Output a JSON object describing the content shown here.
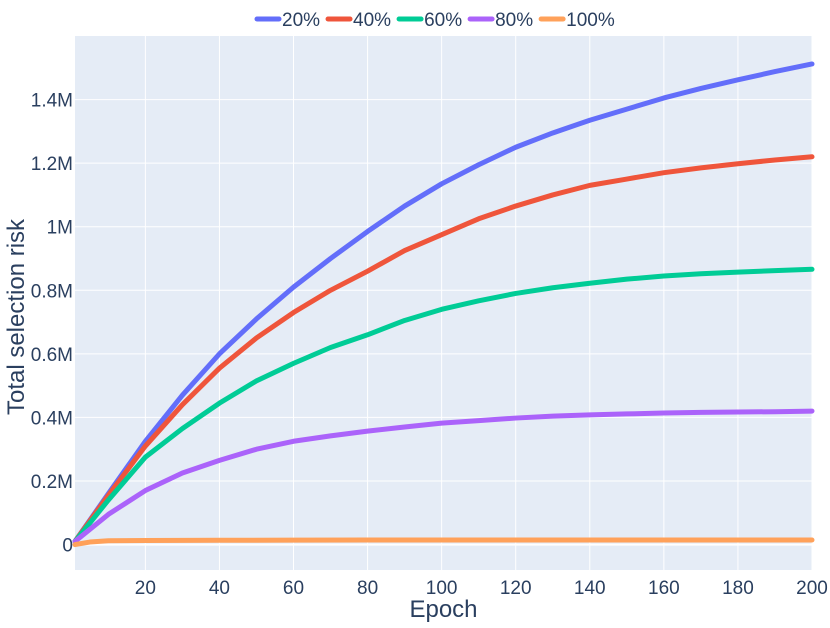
{
  "chart_data": {
    "type": "line",
    "title": "",
    "xlabel": "Epoch",
    "ylabel": "Total selection risk",
    "xlim": [
      1,
      200
    ],
    "ylim": [
      -80000,
      1600000
    ],
    "x_ticks": [
      20,
      40,
      60,
      80,
      100,
      120,
      140,
      160,
      180,
      200
    ],
    "x_tick_labels": [
      "20",
      "40",
      "60",
      "80",
      "100",
      "120",
      "140",
      "160",
      "180",
      "200"
    ],
    "y_ticks": [
      0,
      200000,
      400000,
      600000,
      800000,
      1000000,
      1200000,
      1400000
    ],
    "y_tick_labels": [
      "0",
      "0.2M",
      "0.4M",
      "0.6M",
      "0.8M",
      "1M",
      "1.2M",
      "1.4M"
    ],
    "grid": true,
    "legend_position": "top-center-horizontal",
    "background_color": "#e5ecf6",
    "grid_color": "#ffffff",
    "text_color": "#2a3f5f",
    "series": [
      {
        "name": "20%",
        "color": "#636efa",
        "x": [
          1,
          10,
          20,
          30,
          40,
          50,
          60,
          70,
          80,
          90,
          100,
          110,
          120,
          130,
          140,
          150,
          160,
          170,
          180,
          190,
          200
        ],
        "y": [
          10000,
          160000,
          325000,
          470000,
          600000,
          710000,
          810000,
          900000,
          985000,
          1065000,
          1135000,
          1195000,
          1250000,
          1295000,
          1335000,
          1370000,
          1405000,
          1435000,
          1462000,
          1488000,
          1512000
        ]
      },
      {
        "name": "40%",
        "color": "#ef553b",
        "x": [
          1,
          10,
          20,
          30,
          40,
          50,
          60,
          70,
          80,
          90,
          100,
          110,
          120,
          130,
          140,
          150,
          160,
          170,
          180,
          190,
          200
        ],
        "y": [
          10000,
          155000,
          310000,
          440000,
          555000,
          650000,
          730000,
          800000,
          860000,
          925000,
          975000,
          1025000,
          1065000,
          1100000,
          1130000,
          1150000,
          1170000,
          1185000,
          1198000,
          1210000,
          1220000
        ]
      },
      {
        "name": "60%",
        "color": "#00cc96",
        "x": [
          1,
          10,
          20,
          30,
          40,
          50,
          60,
          70,
          80,
          90,
          100,
          110,
          120,
          130,
          140,
          150,
          160,
          170,
          180,
          190,
          200
        ],
        "y": [
          10000,
          140000,
          275000,
          365000,
          445000,
          515000,
          570000,
          620000,
          660000,
          705000,
          740000,
          767000,
          790000,
          808000,
          822000,
          835000,
          845000,
          852000,
          857000,
          862000,
          866000
        ]
      },
      {
        "name": "80%",
        "color": "#ab63fa",
        "x": [
          1,
          10,
          20,
          30,
          40,
          50,
          60,
          70,
          80,
          90,
          100,
          110,
          120,
          130,
          140,
          150,
          160,
          170,
          180,
          190,
          200
        ],
        "y": [
          10000,
          95000,
          170000,
          225000,
          265000,
          300000,
          325000,
          342000,
          357000,
          370000,
          382000,
          390000,
          398000,
          404000,
          408000,
          411000,
          414000,
          416000,
          417000,
          418000,
          420000
        ]
      },
      {
        "name": "100%",
        "color": "#ffa15a",
        "x": [
          1,
          5,
          10,
          20,
          40,
          60,
          80,
          100,
          120,
          140,
          160,
          180,
          200
        ],
        "y": [
          0,
          8000,
          12000,
          13000,
          13500,
          14000,
          14500,
          14500,
          14500,
          14500,
          14500,
          14500,
          14500
        ]
      }
    ]
  }
}
